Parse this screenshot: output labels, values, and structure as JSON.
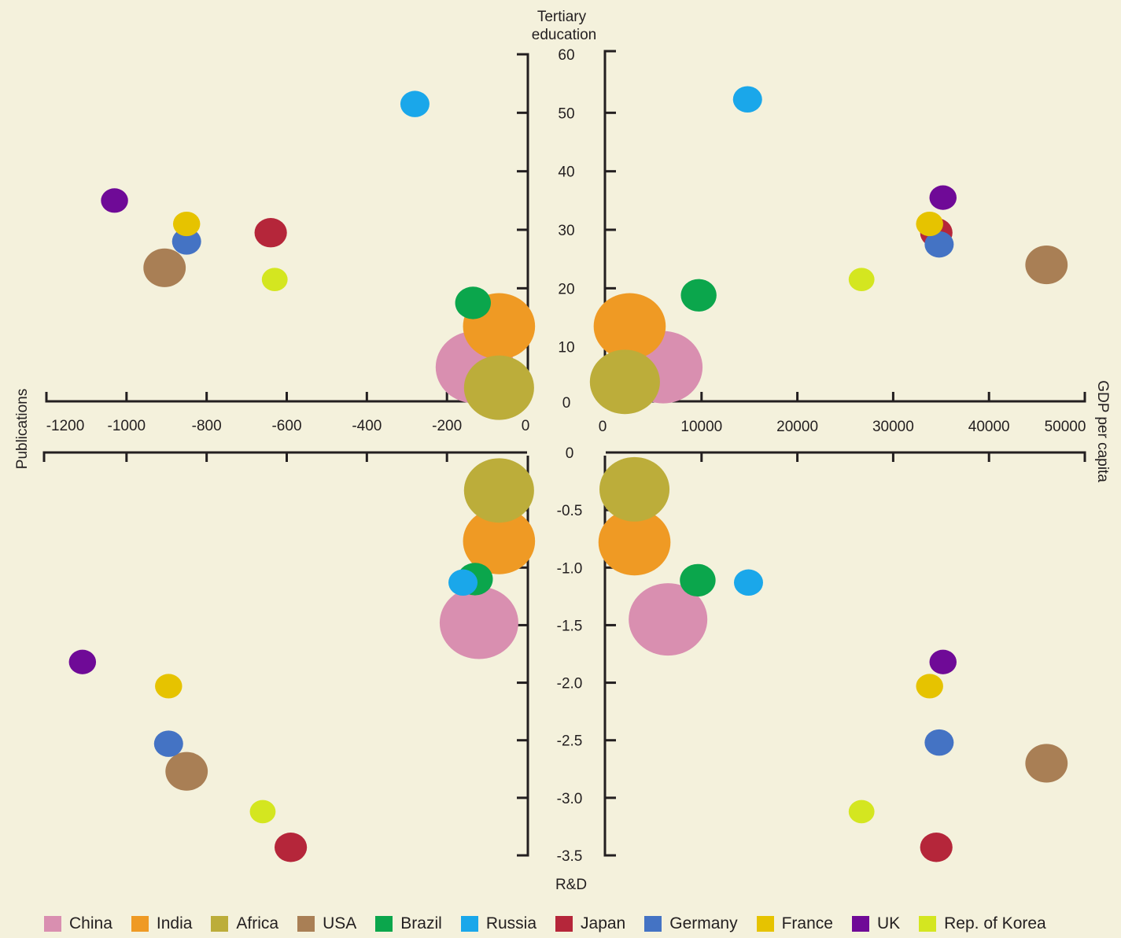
{
  "chart_data": {
    "type": "scatter",
    "description_type": "bubble quadrant",
    "axes": {
      "tertiary": {
        "label_line1": "Tertiary",
        "label_line2": "education",
        "ticks": [
          "0",
          "10",
          "20",
          "30",
          "40",
          "50",
          "60"
        ],
        "range": [
          0,
          60
        ]
      },
      "rd": {
        "label": "R&D",
        "ticks": [
          "0",
          "-0.5",
          "-1.0",
          "-1.5",
          "-2.0",
          "-2.5",
          "-3.0",
          "-3.5"
        ],
        "range": [
          0,
          -3.5
        ]
      },
      "publications": {
        "label": "Publications",
        "ticks": [
          "-1200",
          "-1000",
          "-800",
          "-600",
          "-400",
          "-200",
          "0"
        ],
        "range": [
          -1200,
          0
        ]
      },
      "gdp": {
        "label": "GDP per capita",
        "ticks": [
          "0",
          "10000",
          "20000",
          "30000",
          "40000",
          "50000"
        ],
        "range": [
          0,
          50000
        ]
      }
    },
    "series": [
      {
        "name": "China",
        "color": "#d98fb0",
        "size": 1.0,
        "pub_tert": [
          -130,
          6.5
        ],
        "gdp_tert": [
          6000,
          6.5
        ],
        "pub_rd": [
          -120,
          -1.48
        ],
        "gdp_rd": [
          6500,
          -1.45
        ]
      },
      {
        "name": "India",
        "color": "#ef9a24",
        "size": 0.9,
        "pub_tert": [
          -70,
          13.5
        ],
        "gdp_tert": [
          2500,
          13.5
        ],
        "pub_rd": [
          -70,
          -0.77
        ],
        "gdp_rd": [
          3000,
          -0.78
        ]
      },
      {
        "name": "Africa",
        "color": "#bcad3a",
        "size": 0.87,
        "pub_tert": [
          -70,
          3.0
        ],
        "gdp_tert": [
          2000,
          4.0
        ],
        "pub_rd": [
          -70,
          -0.33
        ],
        "gdp_rd": [
          3000,
          -0.32
        ]
      },
      {
        "name": "USA",
        "color": "#a97f55",
        "size": 0.45,
        "pub_tert": [
          -905,
          23.5
        ],
        "gdp_tert": [
          46000,
          24.0
        ],
        "pub_rd": [
          -850,
          -2.77
        ],
        "gdp_rd": [
          46000,
          -2.7
        ]
      },
      {
        "name": "Brazil",
        "color": "#0ba64c",
        "size": 0.35,
        "pub_tert": [
          -135,
          17.5
        ],
        "gdp_tert": [
          9700,
          18.8
        ],
        "pub_rd": [
          -130,
          -1.1
        ],
        "gdp_rd": [
          9600,
          -1.11
        ]
      },
      {
        "name": "Russia",
        "color": "#1aa7ea",
        "size": 0.25,
        "pub_tert": [
          -280,
          51.5
        ],
        "gdp_tert": [
          14800,
          52.3
        ],
        "pub_rd": [
          -160,
          -1.13
        ],
        "gdp_rd": [
          14900,
          -1.13
        ]
      },
      {
        "name": "Japan",
        "color": "#b5263a",
        "size": 0.3,
        "pub_tert": [
          -640,
          29.5
        ],
        "gdp_tert": [
          34500,
          29.5
        ],
        "pub_rd": [
          -590,
          -3.43
        ],
        "gdp_rd": [
          34500,
          -3.43
        ]
      },
      {
        "name": "Germany",
        "color": "#4473c4",
        "size": 0.25,
        "pub_tert": [
          -850,
          28.0
        ],
        "gdp_tert": [
          34800,
          27.5
        ],
        "pub_rd": [
          -895,
          -2.53
        ],
        "gdp_rd": [
          34800,
          -2.52
        ]
      },
      {
        "name": "France",
        "color": "#e6c300",
        "size": 0.22,
        "pub_tert": [
          -850,
          31.0
        ],
        "gdp_tert": [
          33800,
          31.0
        ],
        "pub_rd": [
          -895,
          -2.03
        ],
        "gdp_rd": [
          33800,
          -2.03
        ]
      },
      {
        "name": "UK",
        "color": "#6f0a97",
        "size": 0.22,
        "pub_tert": [
          -1030,
          35.0
        ],
        "gdp_tert": [
          35200,
          35.5
        ],
        "pub_rd": [
          -1110,
          -1.82
        ],
        "gdp_rd": [
          35200,
          -1.82
        ]
      },
      {
        "name": "Rep. of Korea",
        "color": "#d4e620",
        "size": 0.2,
        "pub_tert": [
          -630,
          21.5
        ],
        "gdp_tert": [
          26700,
          21.5
        ],
        "pub_rd": [
          -660,
          -3.12
        ],
        "gdp_rd": [
          26700,
          -3.12
        ]
      }
    ],
    "legend_position": "bottom"
  }
}
